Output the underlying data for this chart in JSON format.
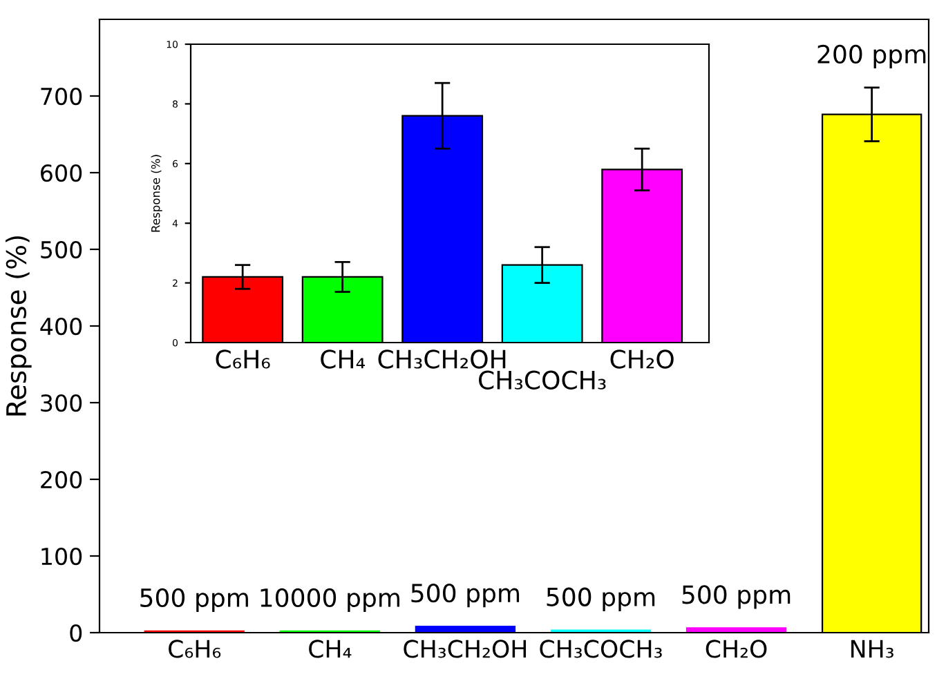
{
  "chart_data": [
    {
      "type": "bar",
      "ylabel": "Response (%)",
      "categories": [
        "C₆H₆",
        "CH₄",
        "CH₃CH₂OH",
        "CH₃COCH₃",
        "CH₂O",
        "NH₃"
      ],
      "values": [
        2,
        2,
        8,
        3,
        6,
        676
      ],
      "errors": [
        null,
        null,
        null,
        null,
        null,
        35
      ],
      "colors": [
        "#ff0000",
        "#00ff00",
        "#0000ff",
        "#00ffff",
        "#ff00ff",
        "#ffff00"
      ],
      "ylim": [
        0,
        800
      ],
      "yticks": [
        0,
        100,
        200,
        300,
        400,
        500,
        600,
        700
      ],
      "annotations": [
        "500 ppm",
        "10000 ppm",
        "500 ppm",
        "500 ppm",
        "500 ppm",
        "200 ppm"
      ],
      "grid": false
    },
    {
      "type": "bar",
      "ylabel": "Response (%)",
      "categories": [
        "C₆H₆",
        "CH₄",
        "CH₃CH₂OH",
        "CH₃COCH₃",
        "CH₂O"
      ],
      "values": [
        2.2,
        2.2,
        7.6,
        2.6,
        5.8
      ],
      "errors": [
        0.4,
        0.5,
        1.1,
        0.6,
        0.7
      ],
      "colors": [
        "#ff0000",
        "#00ff00",
        "#0000ff",
        "#00ffff",
        "#ff00ff"
      ],
      "ylim": [
        0,
        10
      ],
      "yticks": [
        0,
        2,
        4,
        6,
        8,
        10
      ],
      "grid": false
    }
  ]
}
